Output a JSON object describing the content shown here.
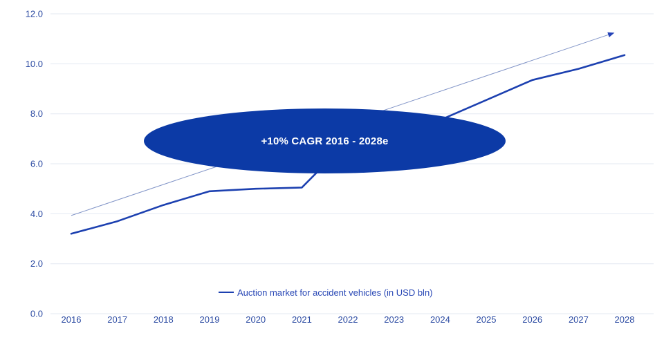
{
  "chart_data": {
    "type": "line",
    "title": "",
    "categories": [
      "2016",
      "2017",
      "2018",
      "2019",
      "2020",
      "2021",
      "2022",
      "2023",
      "2024",
      "2025",
      "2026",
      "2027",
      "2028"
    ],
    "series": [
      {
        "name": "Auction market for accident vehicles (in USD bln)",
        "color": "#1C40B0",
        "values": [
          3.2,
          3.7,
          4.35,
          4.9,
          5.0,
          5.05,
          6.9,
          7.35,
          7.75,
          8.55,
          9.35,
          9.8,
          10.35
        ]
      }
    ],
    "y_axis": {
      "range": [
        0,
        12
      ],
      "ticks": [
        0,
        2,
        4,
        6,
        8,
        10,
        12
      ],
      "labels": [
        "0.0",
        "2.0",
        "4.0",
        "6.0",
        "8.0",
        "10.0",
        "12.0"
      ]
    },
    "x_axis": {
      "labels": [
        "2016",
        "2017",
        "2018",
        "2019",
        "2020",
        "2021",
        "2022",
        "2023",
        "2024",
        "2025",
        "2026",
        "2027",
        "2028"
      ]
    },
    "grid": {
      "horizontal": true,
      "vertical": false
    },
    "legend_position": "bottom-center",
    "trend_arrow": {
      "start_x": 2016.0,
      "start_y": 3.93,
      "end_x": 2027.76,
      "end_y": 11.23,
      "color": "#8194C7",
      "arrowhead_color": "#2543B8"
    },
    "annotation": {
      "shape": "ellipse",
      "label": "+10% CAGR 2016 - 2028e",
      "fill": "#0C3AA6",
      "text_color": "#FFFFFF",
      "center_x": 2021.49,
      "center_y": 6.91,
      "radius_x_years": 3.92,
      "radius_y_value": 1.3
    },
    "colors": {
      "axis_labels": "#2B4AA2",
      "grid": "#E3E8F2",
      "legend_text": "#2847B5"
    }
  }
}
